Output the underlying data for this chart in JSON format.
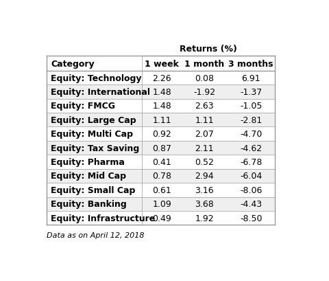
{
  "title": "Returns (%)",
  "header": [
    "Category",
    "1 week",
    "1 month",
    "3 months"
  ],
  "rows": [
    [
      "Equity: Technology",
      "2.26",
      "0.08",
      "6.91"
    ],
    [
      "Equity: International",
      "1.48",
      "-1.92",
      "-1.37"
    ],
    [
      "Equity: FMCG",
      "1.48",
      "2.63",
      "-1.05"
    ],
    [
      "Equity: Large Cap",
      "1.11",
      "1.11",
      "-2.81"
    ],
    [
      "Equity: Multi Cap",
      "0.92",
      "2.07",
      "-4.70"
    ],
    [
      "Equity: Tax Saving",
      "0.87",
      "2.11",
      "-4.62"
    ],
    [
      "Equity: Pharma",
      "0.41",
      "0.52",
      "-6.78"
    ],
    [
      "Equity: Mid Cap",
      "0.78",
      "2.94",
      "-6.04"
    ],
    [
      "Equity: Small Cap",
      "0.61",
      "3.16",
      "-8.06"
    ],
    [
      "Equity: Banking",
      "1.09",
      "3.68",
      "-4.43"
    ],
    [
      "Equity: Infrastructure",
      "0.49",
      "1.92",
      "-8.50"
    ]
  ],
  "footnote": "Data as on April 12, 2018",
  "bg_color": "#ffffff",
  "row_bg_even": "#ffffff",
  "row_bg_odd": "#efefef",
  "border_color": "#999999",
  "text_color": "#000000",
  "title_fontsize": 9,
  "header_fontsize": 9,
  "cell_fontsize": 9,
  "footnote_fontsize": 8
}
